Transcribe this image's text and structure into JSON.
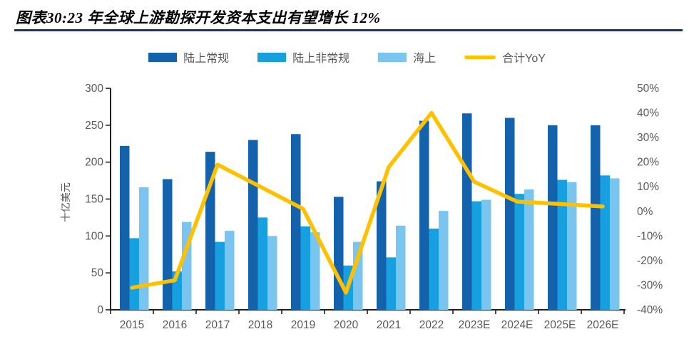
{
  "figure": {
    "title": "图表30:23 年全球上游勘探开发资本支出有望增长 12%",
    "title_color": "#000000",
    "rule_color": "#17375D"
  },
  "chart_data": {
    "type": "combo-bar-line",
    "categories": [
      "2015",
      "2016",
      "2017",
      "2018",
      "2019",
      "2020",
      "2021",
      "2022",
      "2023E",
      "2024E",
      "2025E",
      "2026E"
    ],
    "series": [
      {
        "name": "陆上常规",
        "slug": "onshore-conventional",
        "type": "bar",
        "axis": "left",
        "color": "#1562AC",
        "values": [
          222,
          177,
          214,
          230,
          238,
          153,
          174,
          256,
          266,
          260,
          250,
          250
        ]
      },
      {
        "name": "陆上非常规",
        "slug": "onshore-unconventional",
        "type": "bar",
        "axis": "left",
        "color": "#16A0DF",
        "values": [
          97,
          52,
          92,
          125,
          113,
          60,
          71,
          110,
          147,
          157,
          176,
          182
        ]
      },
      {
        "name": "海上",
        "slug": "offshore",
        "type": "bar",
        "axis": "left",
        "color": "#79C5F0",
        "values": [
          166,
          119,
          107,
          100,
          105,
          92,
          114,
          134,
          149,
          163,
          173,
          178
        ]
      },
      {
        "name": "合计YoY",
        "slug": "total-yoy",
        "type": "line",
        "axis": "right",
        "unit": "%",
        "color": "#FFC000",
        "values": [
          -31,
          -28,
          19,
          10,
          1,
          -33,
          18,
          40,
          12,
          4,
          3,
          2
        ]
      }
    ],
    "left_axis": {
      "title": "十亿美元",
      "min": 0,
      "max": 300,
      "step": 50,
      "tick_labels": [
        "300",
        "250",
        "200",
        "150",
        "100",
        "50",
        "0"
      ]
    },
    "right_axis": {
      "min": -40,
      "max": 50,
      "step": 10,
      "tick_labels": [
        "50%",
        "40%",
        "30%",
        "20%",
        "10%",
        "0%",
        "-10%",
        "-20%",
        "-30%",
        "-40%"
      ]
    },
    "legend_position": "top",
    "grid": false,
    "text_color": "#595959",
    "axis_line_color": "#1F1F1F"
  }
}
